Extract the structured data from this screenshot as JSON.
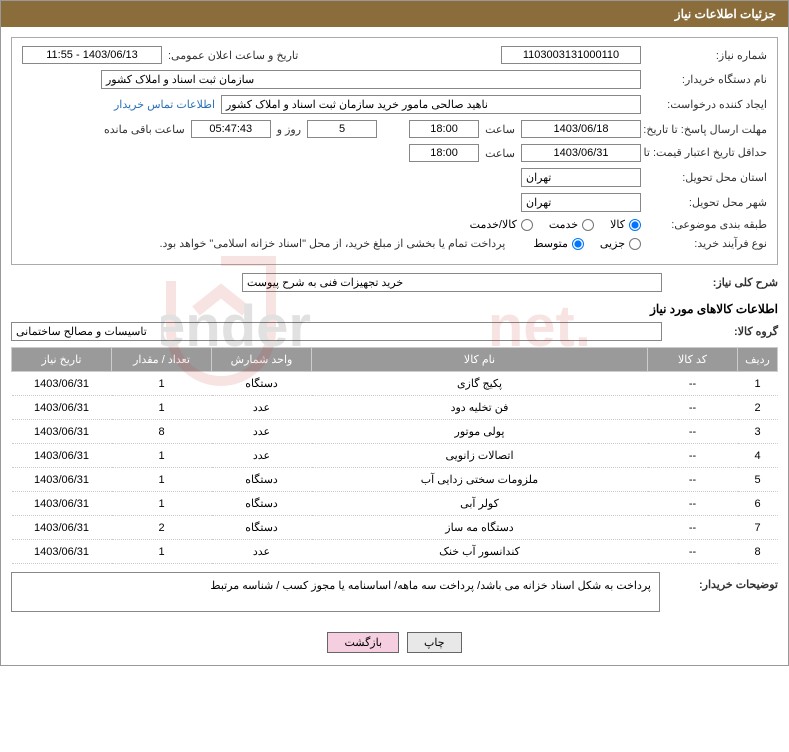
{
  "header": {
    "title": "جزئیات اطلاعات نیاز"
  },
  "fields": {
    "need_no_label": "شماره نیاز:",
    "need_no": "1103003131000110",
    "announce_label": "تاریخ و ساعت اعلان عمومی:",
    "announce_value": "1403/06/13 - 11:55",
    "buyer_org_label": "نام دستگاه خریدار:",
    "buyer_org": "سازمان ثبت اسناد و املاک کشور",
    "requester_label": "ایجاد کننده درخواست:",
    "requester": "ناهید صالحی مامور خرید سازمان ثبت اسناد و املاک کشور",
    "contact_link": "اطلاعات تماس خریدار",
    "deadline_label": "مهلت ارسال پاسخ: تا تاریخ:",
    "deadline_date": "1403/06/18",
    "hour_label": "ساعت",
    "deadline_hour": "18:00",
    "days_value": "5",
    "days_and_label": "روز و",
    "countdown": "05:47:43",
    "remaining_label": "ساعت باقی مانده",
    "validity_label": "حداقل تاریخ اعتبار قیمت: تا تاریخ:",
    "validity_date": "1403/06/31",
    "validity_hour": "18:00",
    "province_label": "استان محل تحویل:",
    "province": "تهران",
    "city_label": "شهر محل تحویل:",
    "city": "تهران",
    "category_label": "طبقه بندی موضوعی:",
    "cat_goods": "کالا",
    "cat_service": "خدمت",
    "cat_mixed": "کالا/خدمت",
    "process_label": "نوع فرآیند خرید:",
    "proc_partial": "جزیی",
    "proc_medium": "متوسط",
    "process_note": "پرداخت تمام یا بخشی از مبلغ خرید، از محل \"اسناد خزانه اسلامی\" خواهد بود.",
    "overall_label": "شرح کلی نیاز:",
    "overall_value": "خرید تجهیزات فنی به شرح پیوست",
    "items_title": "اطلاعات کالاهای مورد نیاز",
    "group_label": "گروه کالا:",
    "group_value": "تاسیسات و مصالح ساختمانی",
    "buyer_note_label": "توضیحات خریدار:",
    "buyer_note": "پرداخت به شکل اسناد خزانه می باشد/ پرداخت سه ماهه/ اساسنامه یا مجوز کسب / شناسه مرتبط"
  },
  "table": {
    "headers": {
      "row": "ردیف",
      "code": "کد کالا",
      "name": "نام کالا",
      "unit": "واحد شمارش",
      "qty": "تعداد / مقدار",
      "date": "تاریخ نیاز"
    },
    "rows": [
      {
        "row": "1",
        "code": "--",
        "name": "پکیج گازی",
        "unit": "دستگاه",
        "qty": "1",
        "date": "1403/06/31"
      },
      {
        "row": "2",
        "code": "--",
        "name": "فن تخلیه دود",
        "unit": "عدد",
        "qty": "1",
        "date": "1403/06/31"
      },
      {
        "row": "3",
        "code": "--",
        "name": "پولی موتور",
        "unit": "عدد",
        "qty": "8",
        "date": "1403/06/31"
      },
      {
        "row": "4",
        "code": "--",
        "name": "اتصالات زانویی",
        "unit": "عدد",
        "qty": "1",
        "date": "1403/06/31"
      },
      {
        "row": "5",
        "code": "--",
        "name": "ملزومات سختی زدایی آب",
        "unit": "دستگاه",
        "qty": "1",
        "date": "1403/06/31"
      },
      {
        "row": "6",
        "code": "--",
        "name": "کولر آبی",
        "unit": "دستگاه",
        "qty": "1",
        "date": "1403/06/31"
      },
      {
        "row": "7",
        "code": "--",
        "name": "دستگاه مه ساز",
        "unit": "دستگاه",
        "qty": "2",
        "date": "1403/06/31"
      },
      {
        "row": "8",
        "code": "--",
        "name": "کندانسور آب خنک",
        "unit": "عدد",
        "qty": "1",
        "date": "1403/06/31"
      }
    ]
  },
  "buttons": {
    "print": "چاپ",
    "back": "بازگشت"
  },
  "colors": {
    "header_bg": "#8a6d3b",
    "th_bg": "#9a9a9a",
    "link": "#2a6fb5",
    "btn_pink": "#f5cfe0"
  },
  "col_widths": {
    "row": "40px",
    "code": "90px",
    "name": "auto",
    "unit": "100px",
    "qty": "100px",
    "date": "100px"
  }
}
